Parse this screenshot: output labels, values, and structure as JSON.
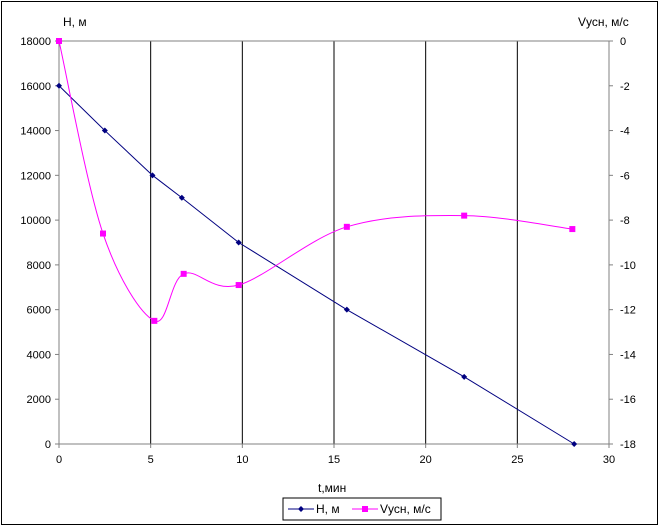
{
  "chart_data": {
    "type": "line",
    "xlabel": "t,мин",
    "x_ticks": [
      0,
      5,
      10,
      15,
      20,
      25,
      30
    ],
    "xlim": [
      0,
      30
    ],
    "y_left": {
      "label": "H, м",
      "lim": [
        0,
        18000
      ],
      "ticks": [
        0,
        2000,
        4000,
        6000,
        8000,
        10000,
        12000,
        14000,
        16000,
        18000
      ]
    },
    "y_right": {
      "label": "Vусн, м/с",
      "lim": [
        -18,
        0
      ],
      "ticks": [
        0,
        -2,
        -4,
        -6,
        -8,
        -10,
        -12,
        -14,
        -16,
        -18
      ]
    },
    "grid": "vertical",
    "legend_position": "bottom",
    "series": [
      {
        "name": "H, м",
        "axis": "left",
        "color": "#000080",
        "marker": "diamond",
        "x": [
          0,
          2.5,
          5.1,
          6.7,
          9.8,
          15.7,
          22.1,
          28.1
        ],
        "y": [
          16000,
          14000,
          12000,
          11000,
          9000,
          6000,
          3000,
          0
        ]
      },
      {
        "name": "Vусн, м/с",
        "axis": "right",
        "color": "#ff00ff",
        "marker": "square",
        "smooth": true,
        "x": [
          0,
          2.4,
          5.2,
          6.8,
          9.8,
          15.7,
          22.1,
          28.0
        ],
        "y": [
          0,
          -8.6,
          -12.5,
          -10.4,
          -10.9,
          -8.3,
          -7.8,
          -8.4
        ]
      }
    ]
  }
}
